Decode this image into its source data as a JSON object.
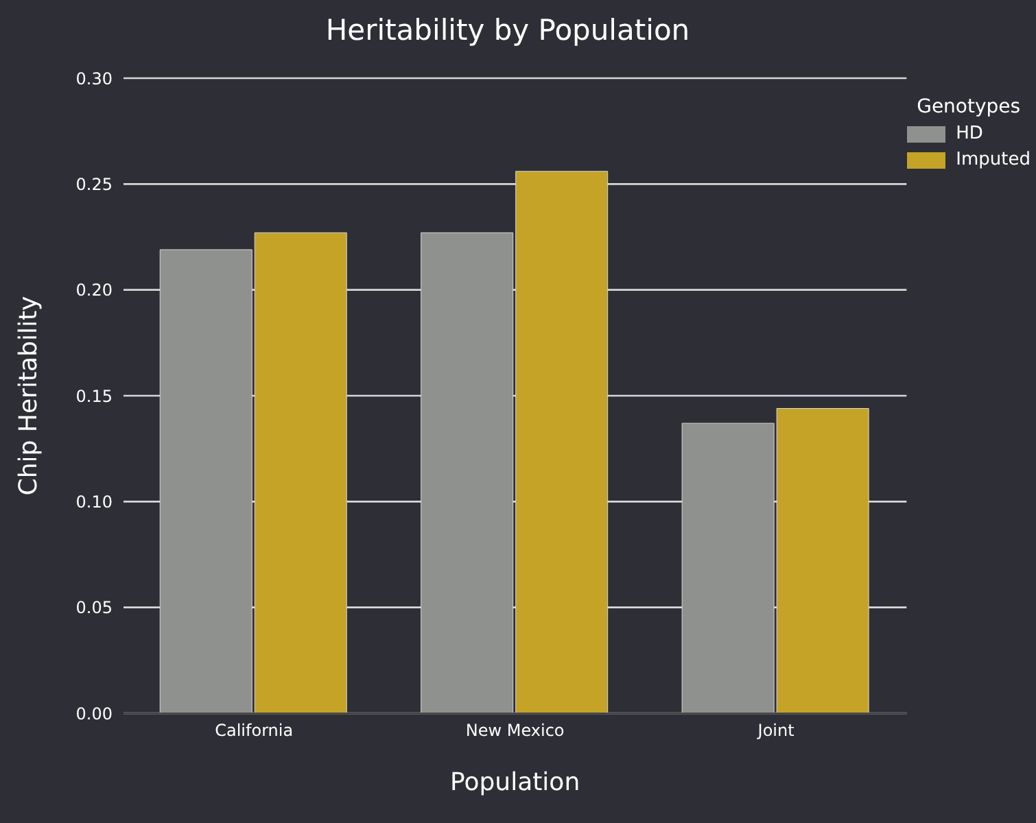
{
  "chart_data": {
    "type": "bar",
    "title": "Heritability by Population",
    "xlabel": "Population",
    "ylabel": "Chip Heritability",
    "legend_title": "Genotypes",
    "categories": [
      "California",
      "New Mexico",
      "Joint"
    ],
    "series": [
      {
        "name": "HD",
        "color": "#8f918e",
        "values": [
          0.219,
          0.227,
          0.137
        ]
      },
      {
        "name": "Imputed",
        "color": "#c4a326",
        "values": [
          0.227,
          0.256,
          0.144
        ]
      }
    ],
    "ylim": [
      0,
      0.3
    ],
    "yticks": [
      {
        "value": 0,
        "label": "0.00"
      },
      {
        "value": 0.05,
        "label": "0.05"
      },
      {
        "value": 0.1,
        "label": "0.10"
      },
      {
        "value": 0.15,
        "label": "0.15"
      },
      {
        "value": 0.2,
        "label": "0.20"
      },
      {
        "value": 0.25,
        "label": "0.25"
      },
      {
        "value": 0.3,
        "label": "0.30"
      }
    ],
    "grid": "y",
    "legend": "top right"
  }
}
